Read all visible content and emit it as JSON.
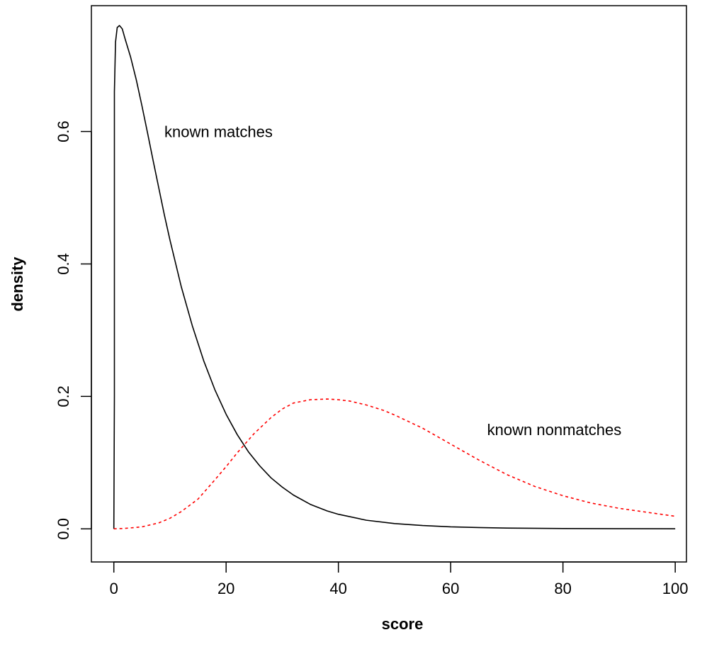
{
  "chart_data": {
    "type": "line",
    "title": "",
    "xlabel": "score",
    "ylabel": "density",
    "xlim": [
      -4,
      102
    ],
    "ylim": [
      -0.05,
      0.79
    ],
    "x_ticks": [
      0,
      20,
      40,
      60,
      80,
      100
    ],
    "x_tick_labels": [
      "0",
      "20",
      "40",
      "60",
      "80",
      "100"
    ],
    "y_ticks": [
      0.0,
      0.2,
      0.4,
      0.6
    ],
    "y_tick_labels": [
      "0.0",
      "0.2",
      "0.4",
      "0.6"
    ],
    "grid": false,
    "series": [
      {
        "color": "#000000",
        "line_style": "solid",
        "x": [
          0,
          0.1,
          0.3,
          0.6,
          1,
          1.5,
          2,
          3,
          4,
          5,
          6,
          7,
          8,
          9,
          10,
          12,
          14,
          16,
          18,
          20,
          22,
          24,
          26,
          28,
          30,
          32,
          35,
          38,
          40,
          45,
          50,
          55,
          60,
          65,
          70,
          80,
          90,
          100
        ],
        "y": [
          0,
          0.66,
          0.735,
          0.757,
          0.76,
          0.755,
          0.74,
          0.712,
          0.678,
          0.639,
          0.598,
          0.556,
          0.515,
          0.474,
          0.436,
          0.366,
          0.306,
          0.254,
          0.21,
          0.173,
          0.142,
          0.116,
          0.095,
          0.077,
          0.063,
          0.051,
          0.037,
          0.027,
          0.022,
          0.013,
          0.008,
          0.005,
          0.003,
          0.002,
          0.0012,
          0.0005,
          0.0002,
          0.0001
        ]
      },
      {
        "color": "#ff0000",
        "line_style": "dashed",
        "x": [
          0,
          2,
          5,
          8,
          10,
          12,
          15,
          18,
          20,
          22,
          25,
          28,
          30,
          32,
          35,
          38,
          40,
          42,
          45,
          48,
          50,
          55,
          60,
          65,
          70,
          75,
          80,
          85,
          90,
          95,
          100
        ],
        "y": [
          0,
          0.0007,
          0.003,
          0.009,
          0.016,
          0.026,
          0.045,
          0.074,
          0.094,
          0.115,
          0.144,
          0.168,
          0.181,
          0.19,
          0.195,
          0.196,
          0.195,
          0.193,
          0.187,
          0.179,
          0.172,
          0.152,
          0.128,
          0.104,
          0.082,
          0.064,
          0.05,
          0.039,
          0.031,
          0.025,
          0.019
        ]
      }
    ],
    "annotations": [
      {
        "text": "known matches",
        "x": 9,
        "y": 0.6
      },
      {
        "text": "known nonmatches",
        "x": 66.5,
        "y": 0.15
      }
    ]
  }
}
